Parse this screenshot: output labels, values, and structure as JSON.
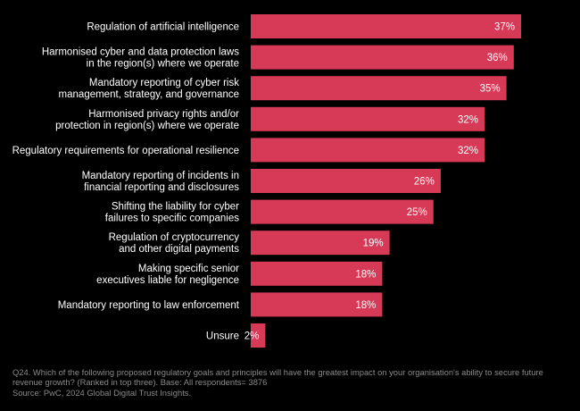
{
  "chart_data": {
    "type": "bar",
    "orientation": "horizontal",
    "categories": [
      [
        "Regulation of artificial intelligence"
      ],
      [
        "Harmonised cyber and data protection laws",
        "in the region(s) where we operate"
      ],
      [
        "Mandatory reporting of cyber risk",
        "management, strategy, and governance"
      ],
      [
        "Harmonised privacy rights and/or",
        "protection in region(s) where we operate"
      ],
      [
        "Regulatory requirements for operational resilience"
      ],
      [
        "Mandatory reporting of incidents in",
        "financial reporting and disclosures"
      ],
      [
        "Shifting the liability for cyber",
        "failures to specific companies"
      ],
      [
        "Regulation of cryptocurrency",
        "and other digital payments"
      ],
      [
        "Making specific senior",
        "executives liable for negligence"
      ],
      [
        "Mandatory reporting to law enforcement"
      ],
      [
        "Unsure"
      ]
    ],
    "values": [
      37,
      36,
      35,
      32,
      32,
      26,
      25,
      19,
      18,
      18,
      2
    ],
    "value_labels": [
      "37%",
      "36%",
      "35%",
      "32%",
      "32%",
      "26%",
      "25%",
      "19%",
      "18%",
      "18%",
      "2%"
    ],
    "unit": "%",
    "xlim": [
      0,
      37
    ],
    "grid": false,
    "bar_color": "#d63a56",
    "background": "#000000"
  },
  "footnote": {
    "question": "Q24. Which of the following proposed regulatory goals and principles will have the greatest impact on your organisation's ability to secure future",
    "question_cont": "revenue growth? (Ranked in top three). Base: All respondents= 3876",
    "source": "Source: PwC, 2024 Global Digital Trust Insights."
  }
}
